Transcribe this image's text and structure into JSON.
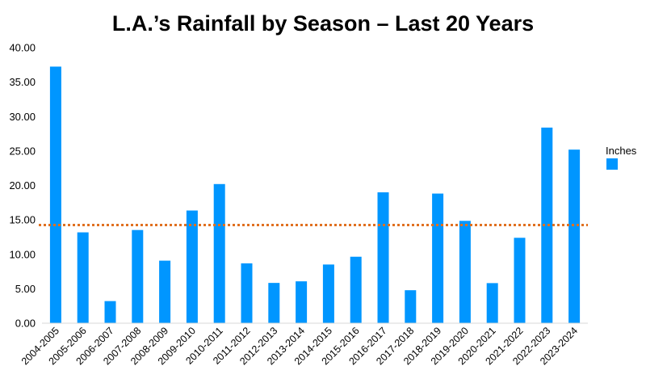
{
  "chart_data": {
    "type": "bar",
    "title": "L.A.’s Rainfall by Season – Last 20 Years",
    "xlabel": "",
    "ylabel": "",
    "ylim": [
      0,
      40
    ],
    "yticks": [
      "0.00",
      "5.00",
      "10.00",
      "15.00",
      "20.00",
      "25.00",
      "30.00",
      "35.00",
      "40.00"
    ],
    "categories": [
      "2004-2005",
      "2005-2006",
      "2006-2007",
      "2007-2008",
      "2008-2009",
      "2009-2010",
      "2010-2011",
      "2011-2012",
      "2012-2013",
      "2013-2014",
      "2014-2015",
      "2015-2016",
      "2016-2017",
      "2017-2018",
      "2018-2019",
      "2019-2020",
      "2020-2021",
      "2021-2022",
      "2022-2023",
      "2023-2024"
    ],
    "series": [
      {
        "name": "Inches",
        "color": "#0096FF",
        "values": [
          37.25,
          13.19,
          3.21,
          13.53,
          9.08,
          16.36,
          20.2,
          8.69,
          5.85,
          6.08,
          8.52,
          9.65,
          19.0,
          4.79,
          18.82,
          14.86,
          5.82,
          12.4,
          28.4,
          25.2
        ]
      }
    ],
    "reference_line": {
      "value": 14.25,
      "color": "#E07020",
      "style": "dotted"
    },
    "legend": {
      "position": "right"
    },
    "grid": false
  }
}
